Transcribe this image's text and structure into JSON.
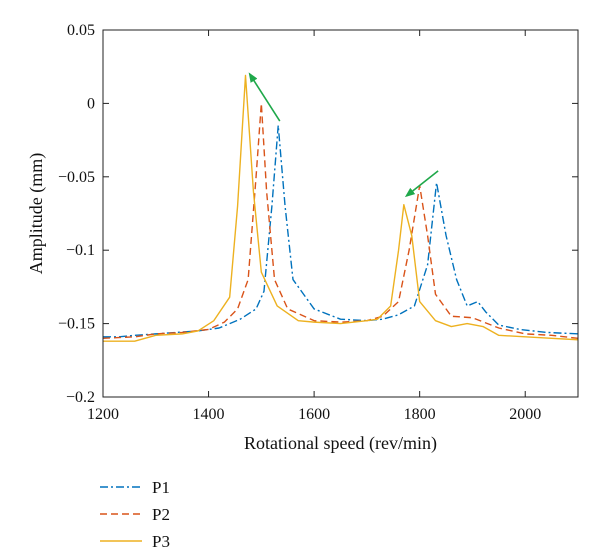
{
  "chart_data": {
    "type": "line",
    "xlabel": "Rotational speed (rev/min)",
    "ylabel": "Amplitude (mm)",
    "xlim": [
      1200,
      2100
    ],
    "ylim": [
      -0.2,
      0.05
    ],
    "xticks": [
      1200,
      1400,
      1600,
      1800,
      2000
    ],
    "yticks": [
      0.05,
      0,
      -0.05,
      -0.1,
      -0.15,
      -0.2
    ],
    "ytick_labels": [
      "0.05",
      "0",
      "−0.05",
      "−0.1",
      "−0.15",
      "−0.2"
    ],
    "grid": false,
    "legend_position": "below-left",
    "series": [
      {
        "name": "P1",
        "color": "#0072BD",
        "style": "dashdot",
        "x": [
          1200,
          1230,
          1260,
          1300,
          1340,
          1380,
          1420,
          1460,
          1490,
          1505,
          1520,
          1532,
          1545,
          1560,
          1600,
          1650,
          1700,
          1730,
          1760,
          1790,
          1815,
          1832,
          1850,
          1870,
          1890,
          1910,
          1925,
          1950,
          1990,
          2040,
          2100
        ],
        "y": [
          -0.159,
          -0.159,
          -0.158,
          -0.157,
          -0.156,
          -0.155,
          -0.153,
          -0.147,
          -0.14,
          -0.128,
          -0.07,
          -0.015,
          -0.07,
          -0.12,
          -0.14,
          -0.147,
          -0.148,
          -0.147,
          -0.144,
          -0.138,
          -0.11,
          -0.054,
          -0.09,
          -0.12,
          -0.138,
          -0.135,
          -0.142,
          -0.151,
          -0.154,
          -0.156,
          -0.157
        ]
      },
      {
        "name": "P2",
        "color": "#D95319",
        "style": "dashed",
        "x": [
          1200,
          1260,
          1300,
          1350,
          1400,
          1430,
          1455,
          1475,
          1490,
          1500,
          1510,
          1525,
          1550,
          1600,
          1650,
          1700,
          1730,
          1760,
          1780,
          1800,
          1815,
          1830,
          1860,
          1900,
          1950,
          2000,
          2050,
          2100
        ],
        "y": [
          -0.16,
          -0.159,
          -0.157,
          -0.156,
          -0.154,
          -0.149,
          -0.14,
          -0.12,
          -0.05,
          0.0,
          -0.06,
          -0.12,
          -0.14,
          -0.148,
          -0.149,
          -0.148,
          -0.145,
          -0.135,
          -0.1,
          -0.056,
          -0.09,
          -0.13,
          -0.145,
          -0.146,
          -0.153,
          -0.157,
          -0.158,
          -0.16
        ]
      },
      {
        "name": "P3",
        "color": "#EDB120",
        "style": "solid",
        "x": [
          1200,
          1260,
          1300,
          1350,
          1380,
          1410,
          1440,
          1455,
          1470,
          1485,
          1500,
          1530,
          1570,
          1600,
          1650,
          1700,
          1720,
          1745,
          1760,
          1770,
          1785,
          1800,
          1830,
          1860,
          1890,
          1920,
          1950,
          2000,
          2050,
          2100
        ],
        "y": [
          -0.162,
          -0.162,
          -0.158,
          -0.157,
          -0.155,
          -0.148,
          -0.132,
          -0.07,
          0.019,
          -0.06,
          -0.115,
          -0.138,
          -0.148,
          -0.149,
          -0.15,
          -0.148,
          -0.147,
          -0.138,
          -0.1,
          -0.069,
          -0.09,
          -0.135,
          -0.148,
          -0.152,
          -0.15,
          -0.152,
          -0.158,
          -0.159,
          -0.16,
          -0.161
        ]
      }
    ],
    "annotations": [
      {
        "type": "arrow",
        "color": "#1FA84A",
        "from": [
          1535,
          -0.012
        ],
        "to": [
          1478,
          0.02
        ]
      },
      {
        "type": "arrow",
        "color": "#1FA84A",
        "from": [
          1835,
          -0.046
        ],
        "to": [
          1775,
          -0.063
        ]
      }
    ]
  }
}
